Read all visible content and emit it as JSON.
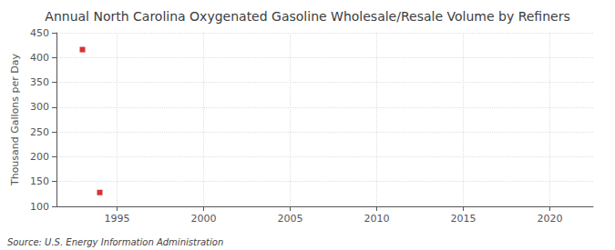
{
  "chart_data": {
    "type": "scatter",
    "title": "Annual North Carolina Oxygenated Gasoline Wholesale/Resale Volume by Refiners",
    "ylabel": "Thousand Gallons per Day",
    "annotation": "Source: U.S. Energy Information Administration",
    "x": [
      1993,
      1994
    ],
    "values": [
      416,
      128
    ],
    "color": "#cc0000",
    "marker": "square",
    "xlim": [
      1991.5,
      2022.5
    ],
    "xticks": [
      1995,
      2000,
      2005,
      2010,
      2015,
      2020
    ],
    "ylim": [
      100,
      450
    ],
    "yticks": [
      100,
      150,
      200,
      250,
      300,
      350,
      400,
      450
    ],
    "grid": true
  }
}
